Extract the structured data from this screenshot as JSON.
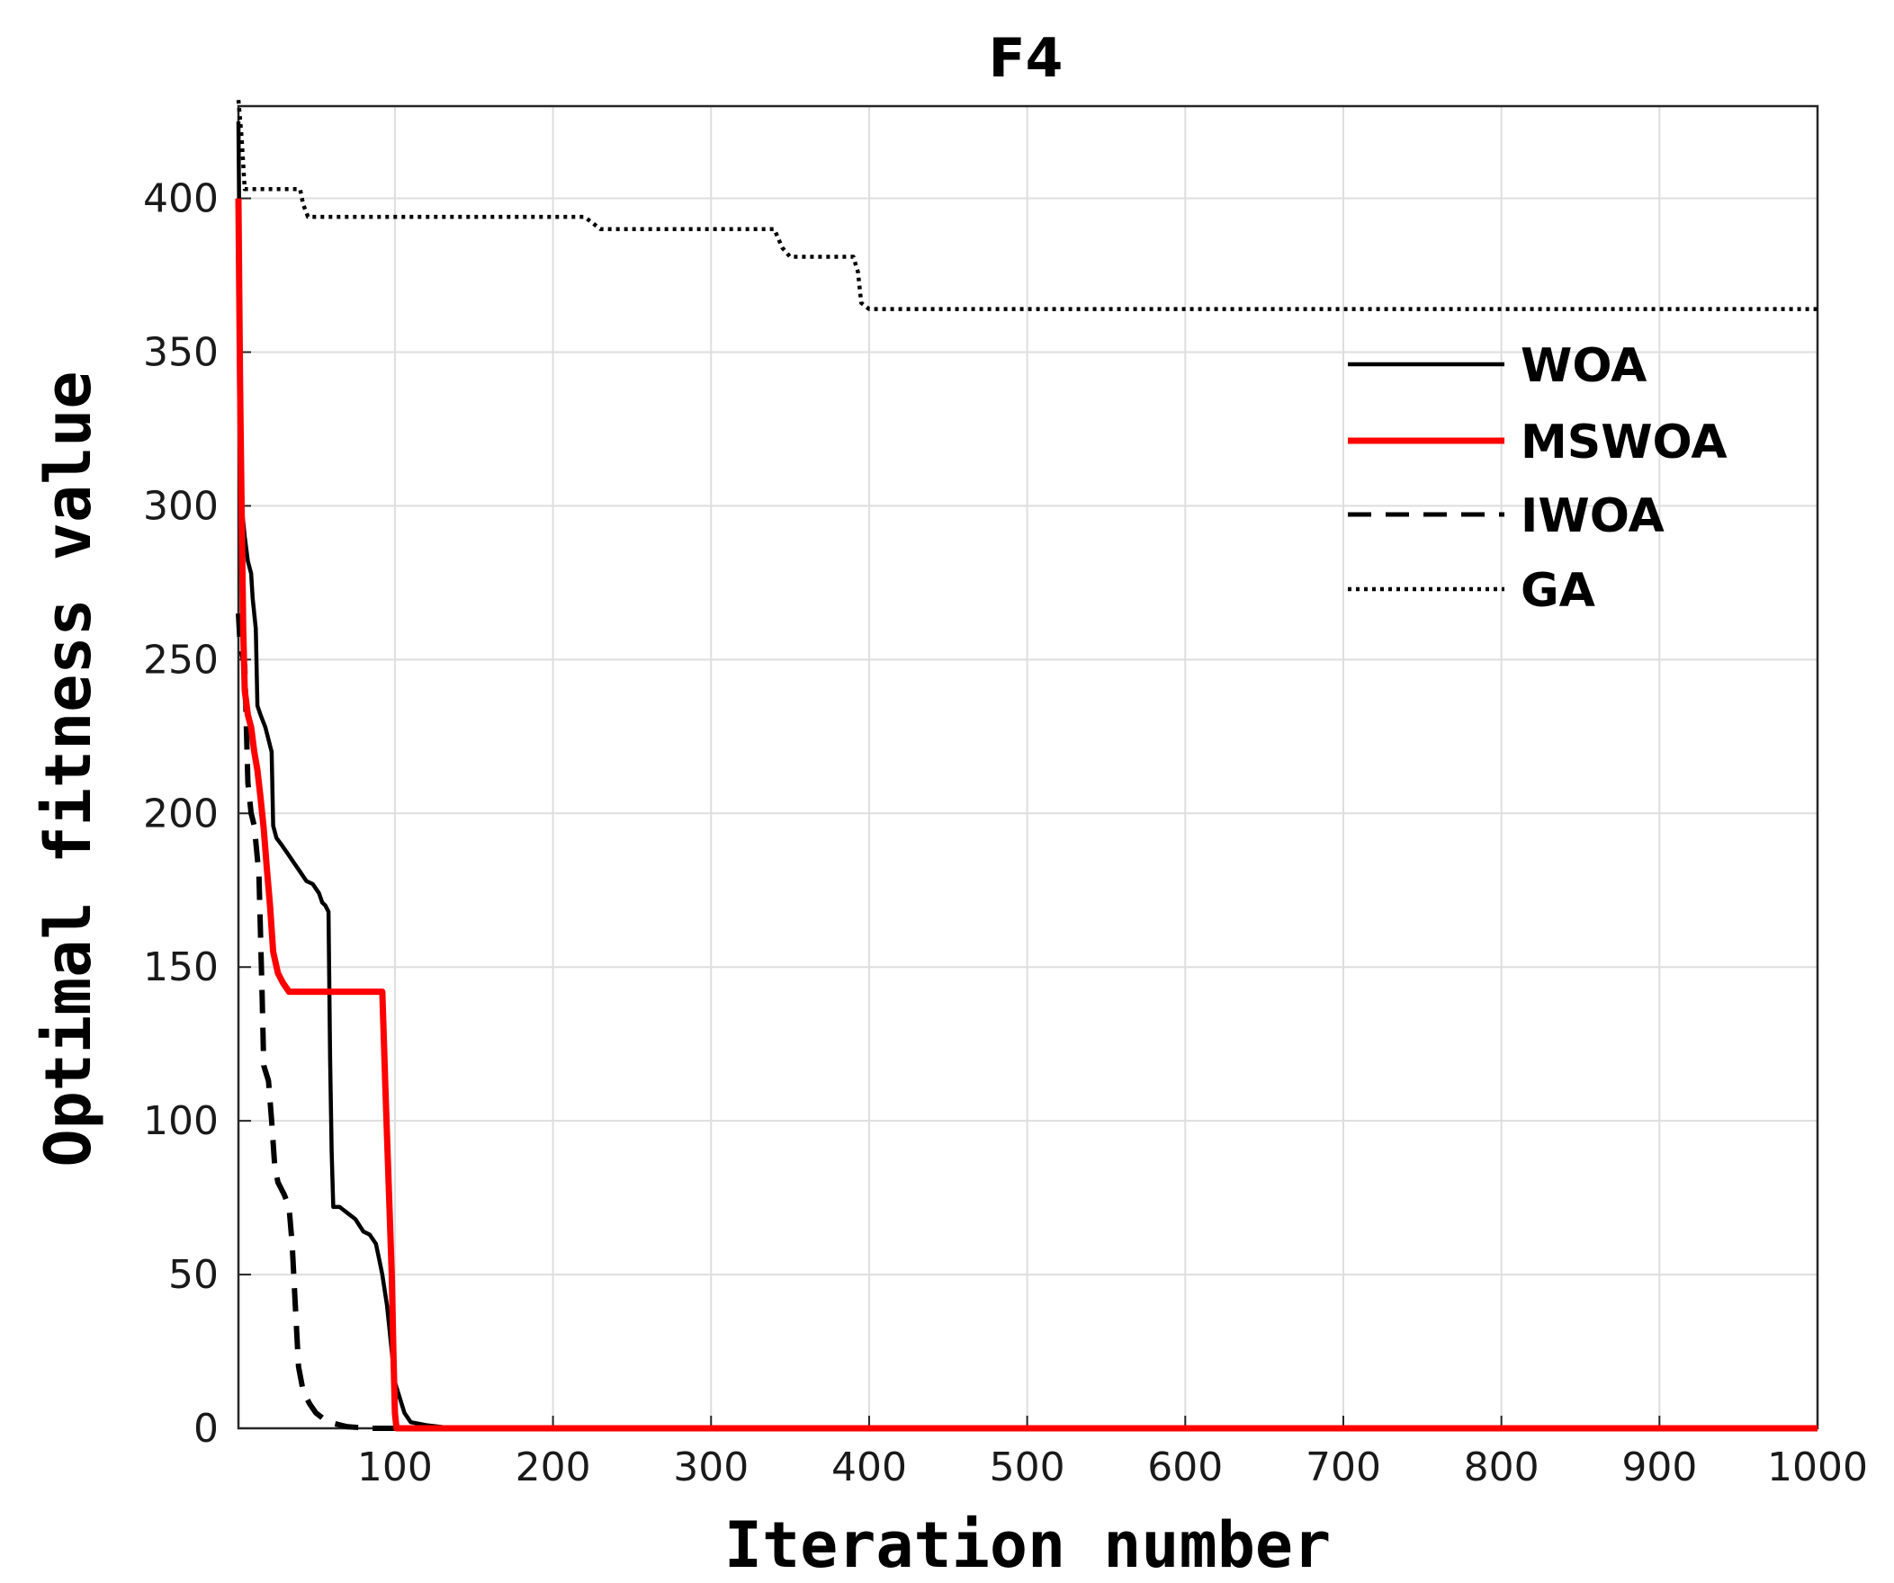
{
  "chart_data": {
    "type": "line",
    "title": "F4",
    "xlabel": "Iteration number",
    "ylabel": "Optimal fitness value",
    "xlim": [
      1,
      1000
    ],
    "ylim": [
      0,
      430
    ],
    "xticks": [
      100,
      200,
      300,
      400,
      500,
      600,
      700,
      800,
      900,
      1000
    ],
    "yticks": [
      0,
      50,
      100,
      150,
      200,
      250,
      300,
      350,
      400
    ],
    "grid": true,
    "legend_position": "top-right",
    "series": [
      {
        "name": "WOA",
        "color": "#000000",
        "style": "solid",
        "points": [
          [
            1,
            425
          ],
          [
            3,
            300
          ],
          [
            5,
            290
          ],
          [
            7,
            282
          ],
          [
            9,
            278
          ],
          [
            10,
            270
          ],
          [
            12,
            260
          ],
          [
            13,
            235
          ],
          [
            15,
            232
          ],
          [
            18,
            228
          ],
          [
            20,
            224
          ],
          [
            22,
            220
          ],
          [
            23,
            196
          ],
          [
            25,
            192
          ],
          [
            28,
            190
          ],
          [
            32,
            187
          ],
          [
            36,
            184
          ],
          [
            40,
            181
          ],
          [
            44,
            178
          ],
          [
            48,
            177
          ],
          [
            52,
            174
          ],
          [
            54,
            171
          ],
          [
            56,
            170
          ],
          [
            58,
            168
          ],
          [
            59,
            120
          ],
          [
            60,
            90
          ],
          [
            61,
            72
          ],
          [
            65,
            72
          ],
          [
            70,
            70
          ],
          [
            75,
            68
          ],
          [
            80,
            64
          ],
          [
            84,
            63
          ],
          [
            88,
            60
          ],
          [
            90,
            55
          ],
          [
            92,
            50
          ],
          [
            95,
            40
          ],
          [
            98,
            25
          ],
          [
            100,
            15
          ],
          [
            103,
            10
          ],
          [
            106,
            5
          ],
          [
            110,
            2
          ],
          [
            120,
            1
          ],
          [
            130,
            0.4
          ],
          [
            150,
            0.2
          ],
          [
            200,
            0
          ],
          [
            1000,
            0
          ]
        ]
      },
      {
        "name": "MSWOA",
        "color": "#ff0000",
        "style": "solid",
        "points": [
          [
            1,
            400
          ],
          [
            2,
            340
          ],
          [
            3,
            300
          ],
          [
            4,
            260
          ],
          [
            5,
            240
          ],
          [
            7,
            232
          ],
          [
            9,
            228
          ],
          [
            11,
            220
          ],
          [
            13,
            214
          ],
          [
            15,
            205
          ],
          [
            17,
            195
          ],
          [
            19,
            182
          ],
          [
            21,
            170
          ],
          [
            23,
            155
          ],
          [
            26,
            148
          ],
          [
            29,
            145
          ],
          [
            33,
            142
          ],
          [
            40,
            142
          ],
          [
            92,
            142
          ],
          [
            94,
            110
          ],
          [
            96,
            80
          ],
          [
            98,
            50
          ],
          [
            99,
            25
          ],
          [
            100,
            5
          ],
          [
            101,
            0
          ],
          [
            1000,
            0
          ]
        ]
      },
      {
        "name": "IWOA",
        "color": "#000000",
        "style": "dashed",
        "points": [
          [
            1,
            265
          ],
          [
            2,
            255
          ],
          [
            5,
            248
          ],
          [
            7,
            210
          ],
          [
            9,
            200
          ],
          [
            11,
            196
          ],
          [
            14,
            180
          ],
          [
            16,
            140
          ],
          [
            17,
            118
          ],
          [
            20,
            113
          ],
          [
            22,
            100
          ],
          [
            24,
            85
          ],
          [
            26,
            80
          ],
          [
            30,
            76
          ],
          [
            33,
            72
          ],
          [
            35,
            60
          ],
          [
            37,
            40
          ],
          [
            39,
            20
          ],
          [
            42,
            12
          ],
          [
            46,
            8
          ],
          [
            50,
            5
          ],
          [
            55,
            3
          ],
          [
            62,
            1.5
          ],
          [
            70,
            0.5
          ],
          [
            85,
            0
          ],
          [
            1000,
            0
          ]
        ]
      },
      {
        "name": "GA",
        "color": "#000000",
        "style": "dotted",
        "points": [
          [
            1,
            432
          ],
          [
            3,
            420
          ],
          [
            5,
            403
          ],
          [
            40,
            403
          ],
          [
            42,
            398
          ],
          [
            45,
            394
          ],
          [
            220,
            394
          ],
          [
            225,
            392
          ],
          [
            230,
            390
          ],
          [
            340,
            390
          ],
          [
            345,
            384
          ],
          [
            350,
            381
          ],
          [
            390,
            381
          ],
          [
            393,
            376
          ],
          [
            395,
            366
          ],
          [
            400,
            364
          ],
          [
            1000,
            364
          ]
        ]
      }
    ]
  }
}
